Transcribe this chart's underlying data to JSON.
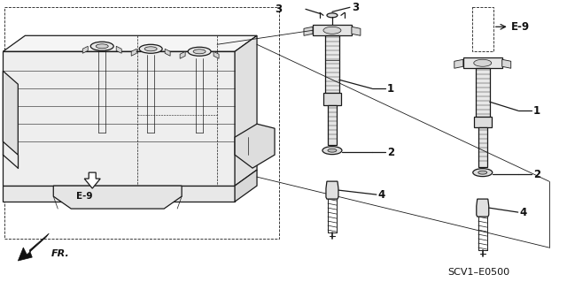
{
  "bg_color": "#ffffff",
  "line_color": "#1a1a1a",
  "text_color": "#111111",
  "fig_width": 6.4,
  "fig_height": 3.19,
  "dpi": 100,
  "labels": {
    "part1": "1",
    "part2": "2",
    "part3": "3",
    "part4": "4",
    "e9": "E-9",
    "fr": "FR.",
    "code": "SCV1–E0500"
  },
  "font_size": 7.5
}
